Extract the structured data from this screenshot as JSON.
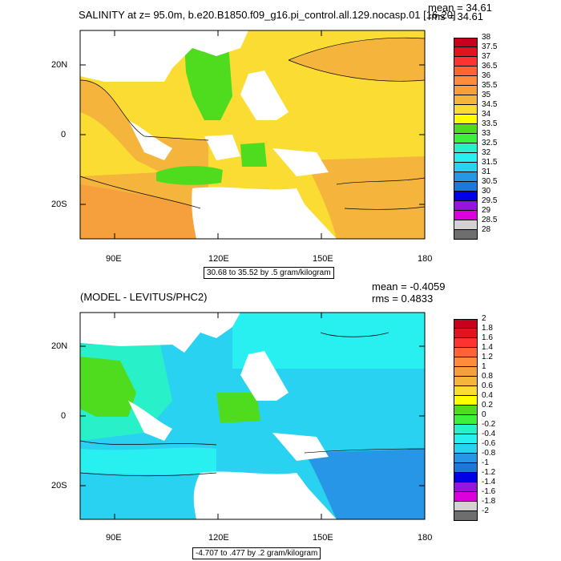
{
  "chart_data": [
    {
      "type": "heatmap",
      "title": "SALINITY at z=  95.0m, b.e20.B1850.f09_g16.pi_control.all.129.nocasp.01 [16-20]",
      "stats": {
        "mean_label": "mean = 34.61",
        "rms_label": "rms = 34.61"
      },
      "x_ticks": [
        "90E",
        "120E",
        "150E",
        "180"
      ],
      "y_ticks": [
        "20N",
        "0",
        "20S"
      ],
      "x_range_deg": [
        80,
        180
      ],
      "y_range_deg": [
        -30,
        30
      ],
      "colorbar_labels": [
        "38",
        "37.5",
        "37",
        "36.5",
        "36",
        "35.5",
        "35",
        "34.5",
        "34",
        "33.5",
        "33",
        "32.5",
        "32",
        "31.5",
        "31",
        "30.5",
        "30",
        "29.5",
        "29",
        "28.5",
        "28"
      ],
      "colorbar_colors": [
        "#c8001e",
        "#e1141e",
        "#ff3232",
        "#ff6432",
        "#ff8c3c",
        "#f5a03c",
        "#f5b43c",
        "#fadc32",
        "#ffff00",
        "#50dc1e",
        "#3cf03c",
        "#28f0c8",
        "#28f0f0",
        "#28d2f0",
        "#2896e6",
        "#1e78dc",
        "#0000e6",
        "#9614dc",
        "#dc00dc",
        "#d2d2d2",
        "#6e6e6e"
      ],
      "contour_info": "30.68 to 35.52 by .5 gram/kilogram"
    },
    {
      "type": "heatmap",
      "title": "(MODEL - LEVITUS/PHC2)",
      "stats": {
        "mean_label": "mean = -0.4059",
        "rms_label": "rms = 0.4833"
      },
      "x_ticks": [
        "90E",
        "120E",
        "150E",
        "180"
      ],
      "y_ticks": [
        "20N",
        "0",
        "20S"
      ],
      "x_range_deg": [
        80,
        180
      ],
      "y_range_deg": [
        -30,
        30
      ],
      "colorbar_labels": [
        "2",
        "1.8",
        "1.6",
        "1.4",
        "1.2",
        "1",
        "0.8",
        "0.6",
        "0.4",
        "0.2",
        "0",
        "-0.2",
        "-0.4",
        "-0.6",
        "-0.8",
        "-1",
        "-1.2",
        "-1.4",
        "-1.6",
        "-1.8",
        "-2"
      ],
      "colorbar_colors": [
        "#c8001e",
        "#e1141e",
        "#ff3232",
        "#ff6432",
        "#ff8c3c",
        "#f5a03c",
        "#f5b43c",
        "#fadc32",
        "#ffff00",
        "#50dc1e",
        "#3cf03c",
        "#28f0c8",
        "#28f0f0",
        "#28d2f0",
        "#2896e6",
        "#1e78dc",
        "#0000e6",
        "#9614dc",
        "#dc00dc",
        "#d2d2d2",
        "#6e6e6e"
      ],
      "contour_info": "-4.707 to .477 by .2 gram/kilogram"
    }
  ]
}
